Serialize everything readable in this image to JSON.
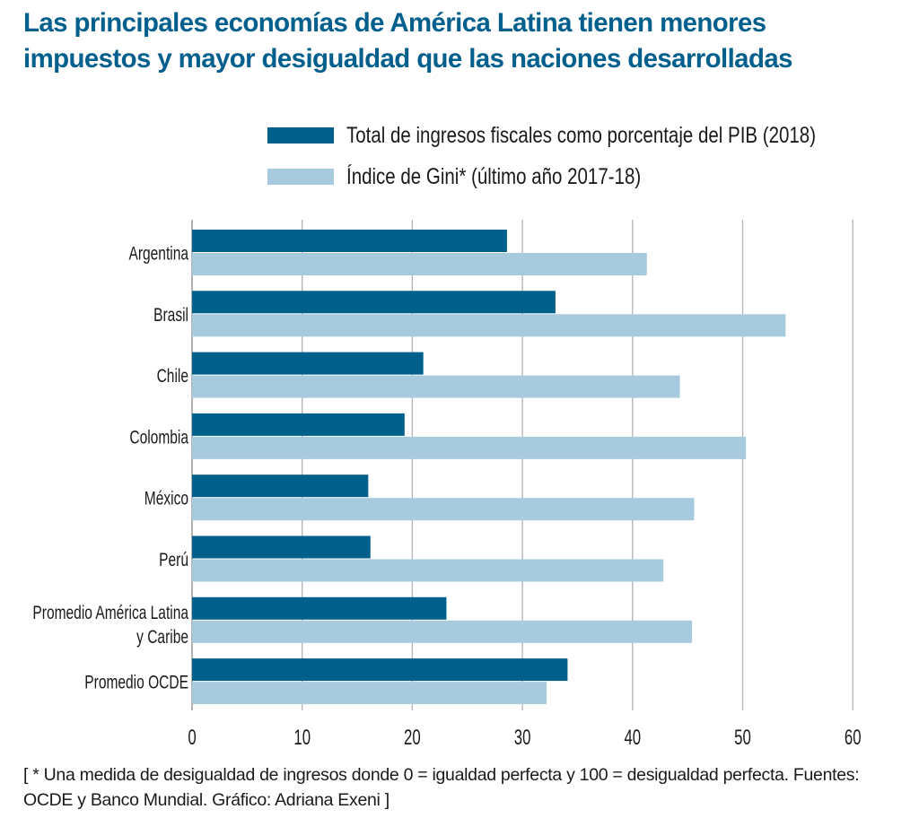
{
  "chart_data": {
    "type": "bar",
    "orientation": "horizontal",
    "title": "Las principales economías de América Latina tienen menores impuestos y mayor desigualdad que las naciones desarrolladas",
    "categories": [
      "Argentina",
      "Brasil",
      "Chile",
      "Colombia",
      "México",
      "Perú",
      "Promedio América Latina y Caribe",
      "Promedio OCDE"
    ],
    "category_label_lines": [
      [
        "Argentina"
      ],
      [
        "Brasil"
      ],
      [
        "Chile"
      ],
      [
        "Colombia"
      ],
      [
        "México"
      ],
      [
        "Perú"
      ],
      [
        "Promedio América Latina",
        "y Caribe"
      ],
      [
        "Promedio OCDE"
      ]
    ],
    "series": [
      {
        "name": "Total de ingresos fiscales como porcentaje del PIB (2018)",
        "color": "#00608c",
        "values": [
          28.6,
          33.0,
          21.0,
          19.3,
          16.0,
          16.2,
          23.1,
          34.1
        ]
      },
      {
        "name": "Índice de Gini* (último año 2017-18)",
        "color": "#a8cade",
        "values": [
          41.3,
          53.9,
          44.3,
          50.3,
          45.6,
          42.8,
          45.4,
          32.2
        ]
      }
    ],
    "xlabel": "",
    "ylabel": "",
    "xlim": [
      0,
      60
    ],
    "xticks": [
      0,
      10,
      20,
      30,
      40,
      50,
      60
    ],
    "grid": true,
    "legend_position": "top-right"
  },
  "footnote": "[ * Una medida de desigualdad de ingresos donde 0 = igualdad perfecta y 100 = desigualdad perfecta. Fuentes: OCDE y Banco Mundial. Gráfico: Adriana Exeni ]",
  "colors": {
    "title": "#005f8c",
    "gridline": "#b3b3b3",
    "axis": "#999999"
  }
}
